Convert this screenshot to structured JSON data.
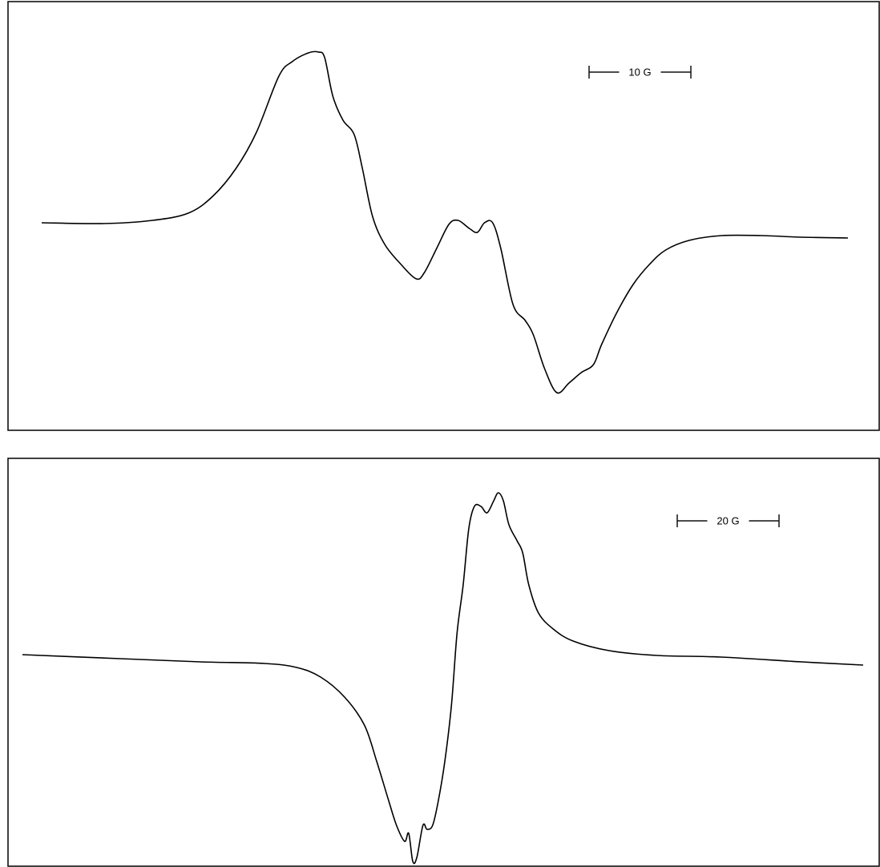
{
  "chart_data": [
    {
      "type": "line",
      "x": [
        0,
        6.1,
        10.9,
        14.4,
        16.8,
        19.1,
        21.1,
        23.3,
        24.6,
        26.2,
        27.2,
        27.8,
        28.6,
        29.6,
        30.7,
        31.5,
        32.5,
        33.7,
        35.3,
        36.8,
        37.6,
        38.8,
        40.0,
        40.9,
        42.0,
        42.8,
        43.5,
        44.3,
        45.1,
        46.3,
        47.5,
        48.3,
        49.4,
        50.6,
        51.8,
        53.0,
        54.2,
        55.0,
        56.5,
        58.1,
        59.7,
        61.3,
        63.6,
        66.8,
        70.7,
        74.6,
        79.2
      ],
      "values": [
        0,
        -1,
        3,
        12,
        33,
        68,
        113,
        183,
        201,
        212,
        213,
        206,
        158,
        128,
        110,
        68,
        8,
        -27,
        -52,
        -70,
        -62,
        -32,
        -2,
        3,
        -7,
        -12,
        0,
        0,
        -32,
        -102,
        -122,
        -140,
        -182,
        -212,
        -200,
        -187,
        -177,
        -152,
        -112,
        -77,
        -52,
        -34,
        -22,
        -16,
        -16,
        -18,
        -19
      ],
      "color": "#000000",
      "scale_bar": {
        "label": "10 G",
        "length": 10
      }
    },
    {
      "type": "line",
      "x": [
        0,
        19.2,
        35.0,
        47.6,
        53.9,
        58.6,
        63.3,
        67.2,
        69.6,
        72.0,
        73.5,
        75.1,
        75.9,
        76.7,
        77.5,
        78.7,
        79.5,
        80.6,
        81.7,
        83.0,
        84.3,
        85.4,
        86.6,
        87.7,
        88.8,
        90.1,
        91.3,
        92.6,
        93.5,
        94.5,
        95.6,
        97.2,
        98.3,
        99.5,
        101.4,
        104.3,
        108.2,
        115.3,
        124.7,
        137.3,
        153.1,
        165.2
      ],
      "values": [
        0,
        -5,
        -9,
        -11,
        -16,
        -28,
        -53,
        -88,
        -133,
        -183,
        -213,
        -233,
        -223,
        -258,
        -253,
        -213,
        -218,
        -213,
        -183,
        -133,
        -63,
        27,
        87,
        157,
        185,
        185,
        177,
        192,
        202,
        192,
        162,
        142,
        127,
        87,
        52,
        32,
        17,
        5,
        -1,
        -3,
        -9,
        -13
      ],
      "color": "#000000",
      "scale_bar": {
        "label": "20 G",
        "length": 20
      }
    }
  ]
}
